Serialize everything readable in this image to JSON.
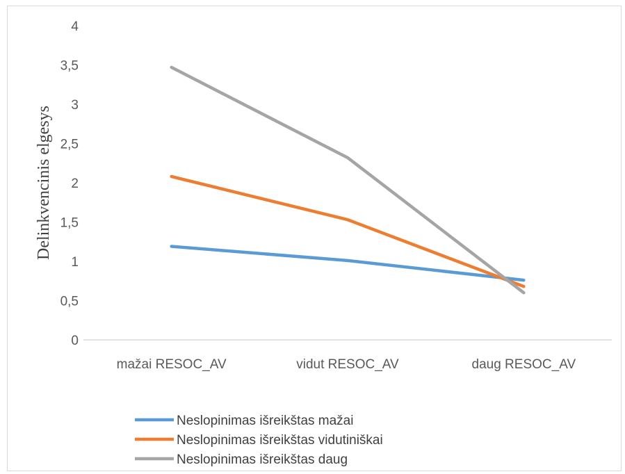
{
  "chart_data": {
    "type": "line",
    "categories": [
      "mažai RESOC_AV",
      "vidut RESOC_AV",
      "daug RESOC_AV"
    ],
    "series": [
      {
        "name": "Neslopinimas išreikštas mažai",
        "values": [
          1.19,
          1.01,
          0.76
        ],
        "color": "#5b9bd5"
      },
      {
        "name": "Neslopinimas išreikštas vidutiniškai",
        "values": [
          2.08,
          1.53,
          0.68
        ],
        "color": "#ed7d31"
      },
      {
        "name": "Neslopinimas išreikštas daug",
        "values": [
          3.47,
          2.32,
          0.6
        ],
        "color": "#a5a5a5"
      }
    ],
    "yticks": [
      "0",
      "0,5",
      "1",
      "1,5",
      "2",
      "2,5",
      "3",
      "3,5",
      "4"
    ],
    "ylabel": "Delinkvencinis elgesys",
    "xlabel": "",
    "ylim": [
      0,
      4
    ],
    "grid": false,
    "legend_position": "bottom-left"
  }
}
